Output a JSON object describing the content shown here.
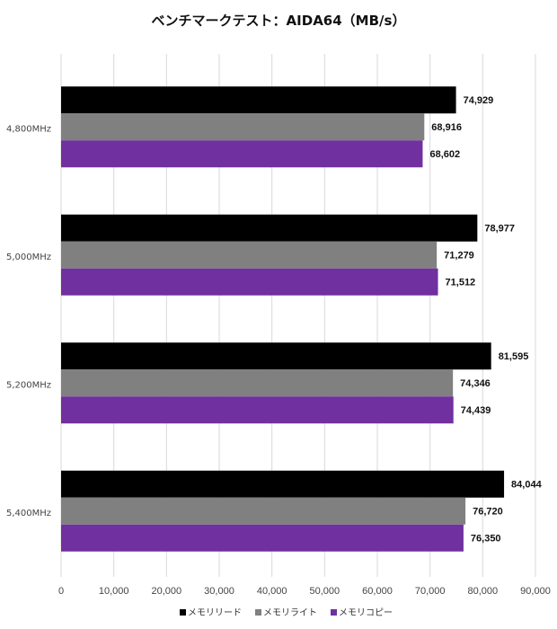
{
  "chart_data": {
    "type": "bar",
    "orientation": "horizontal",
    "title": "ベンチマークテスト：AIDA64（MB/s）",
    "categories": [
      "4,800MHz",
      "5,000MHz",
      "5,200MHz",
      "5,400MHz"
    ],
    "series": [
      {
        "name": "メモリリード",
        "color": "#000000",
        "values": [
          74929,
          78977,
          81595,
          84044
        ],
        "labels": [
          "74,929",
          "78,977",
          "81,595",
          "84,044"
        ]
      },
      {
        "name": "メモリライト",
        "color": "#808080",
        "values": [
          68916,
          71279,
          74346,
          76720
        ],
        "labels": [
          "68,916",
          "71,279",
          "74,346",
          "76,720"
        ]
      },
      {
        "name": "メモリコピー",
        "color": "#7030a0",
        "values": [
          68602,
          71512,
          74439,
          76350
        ],
        "labels": [
          "68,602",
          "71,512",
          "74,439",
          "76,350"
        ]
      }
    ],
    "xlim": [
      0,
      90000
    ],
    "xticks": [
      "0",
      "10,000",
      "20,000",
      "30,000",
      "40,000",
      "50,000",
      "60,000",
      "70,000",
      "80,000",
      "90,000"
    ],
    "grid": true,
    "legend": "bottom-center"
  }
}
